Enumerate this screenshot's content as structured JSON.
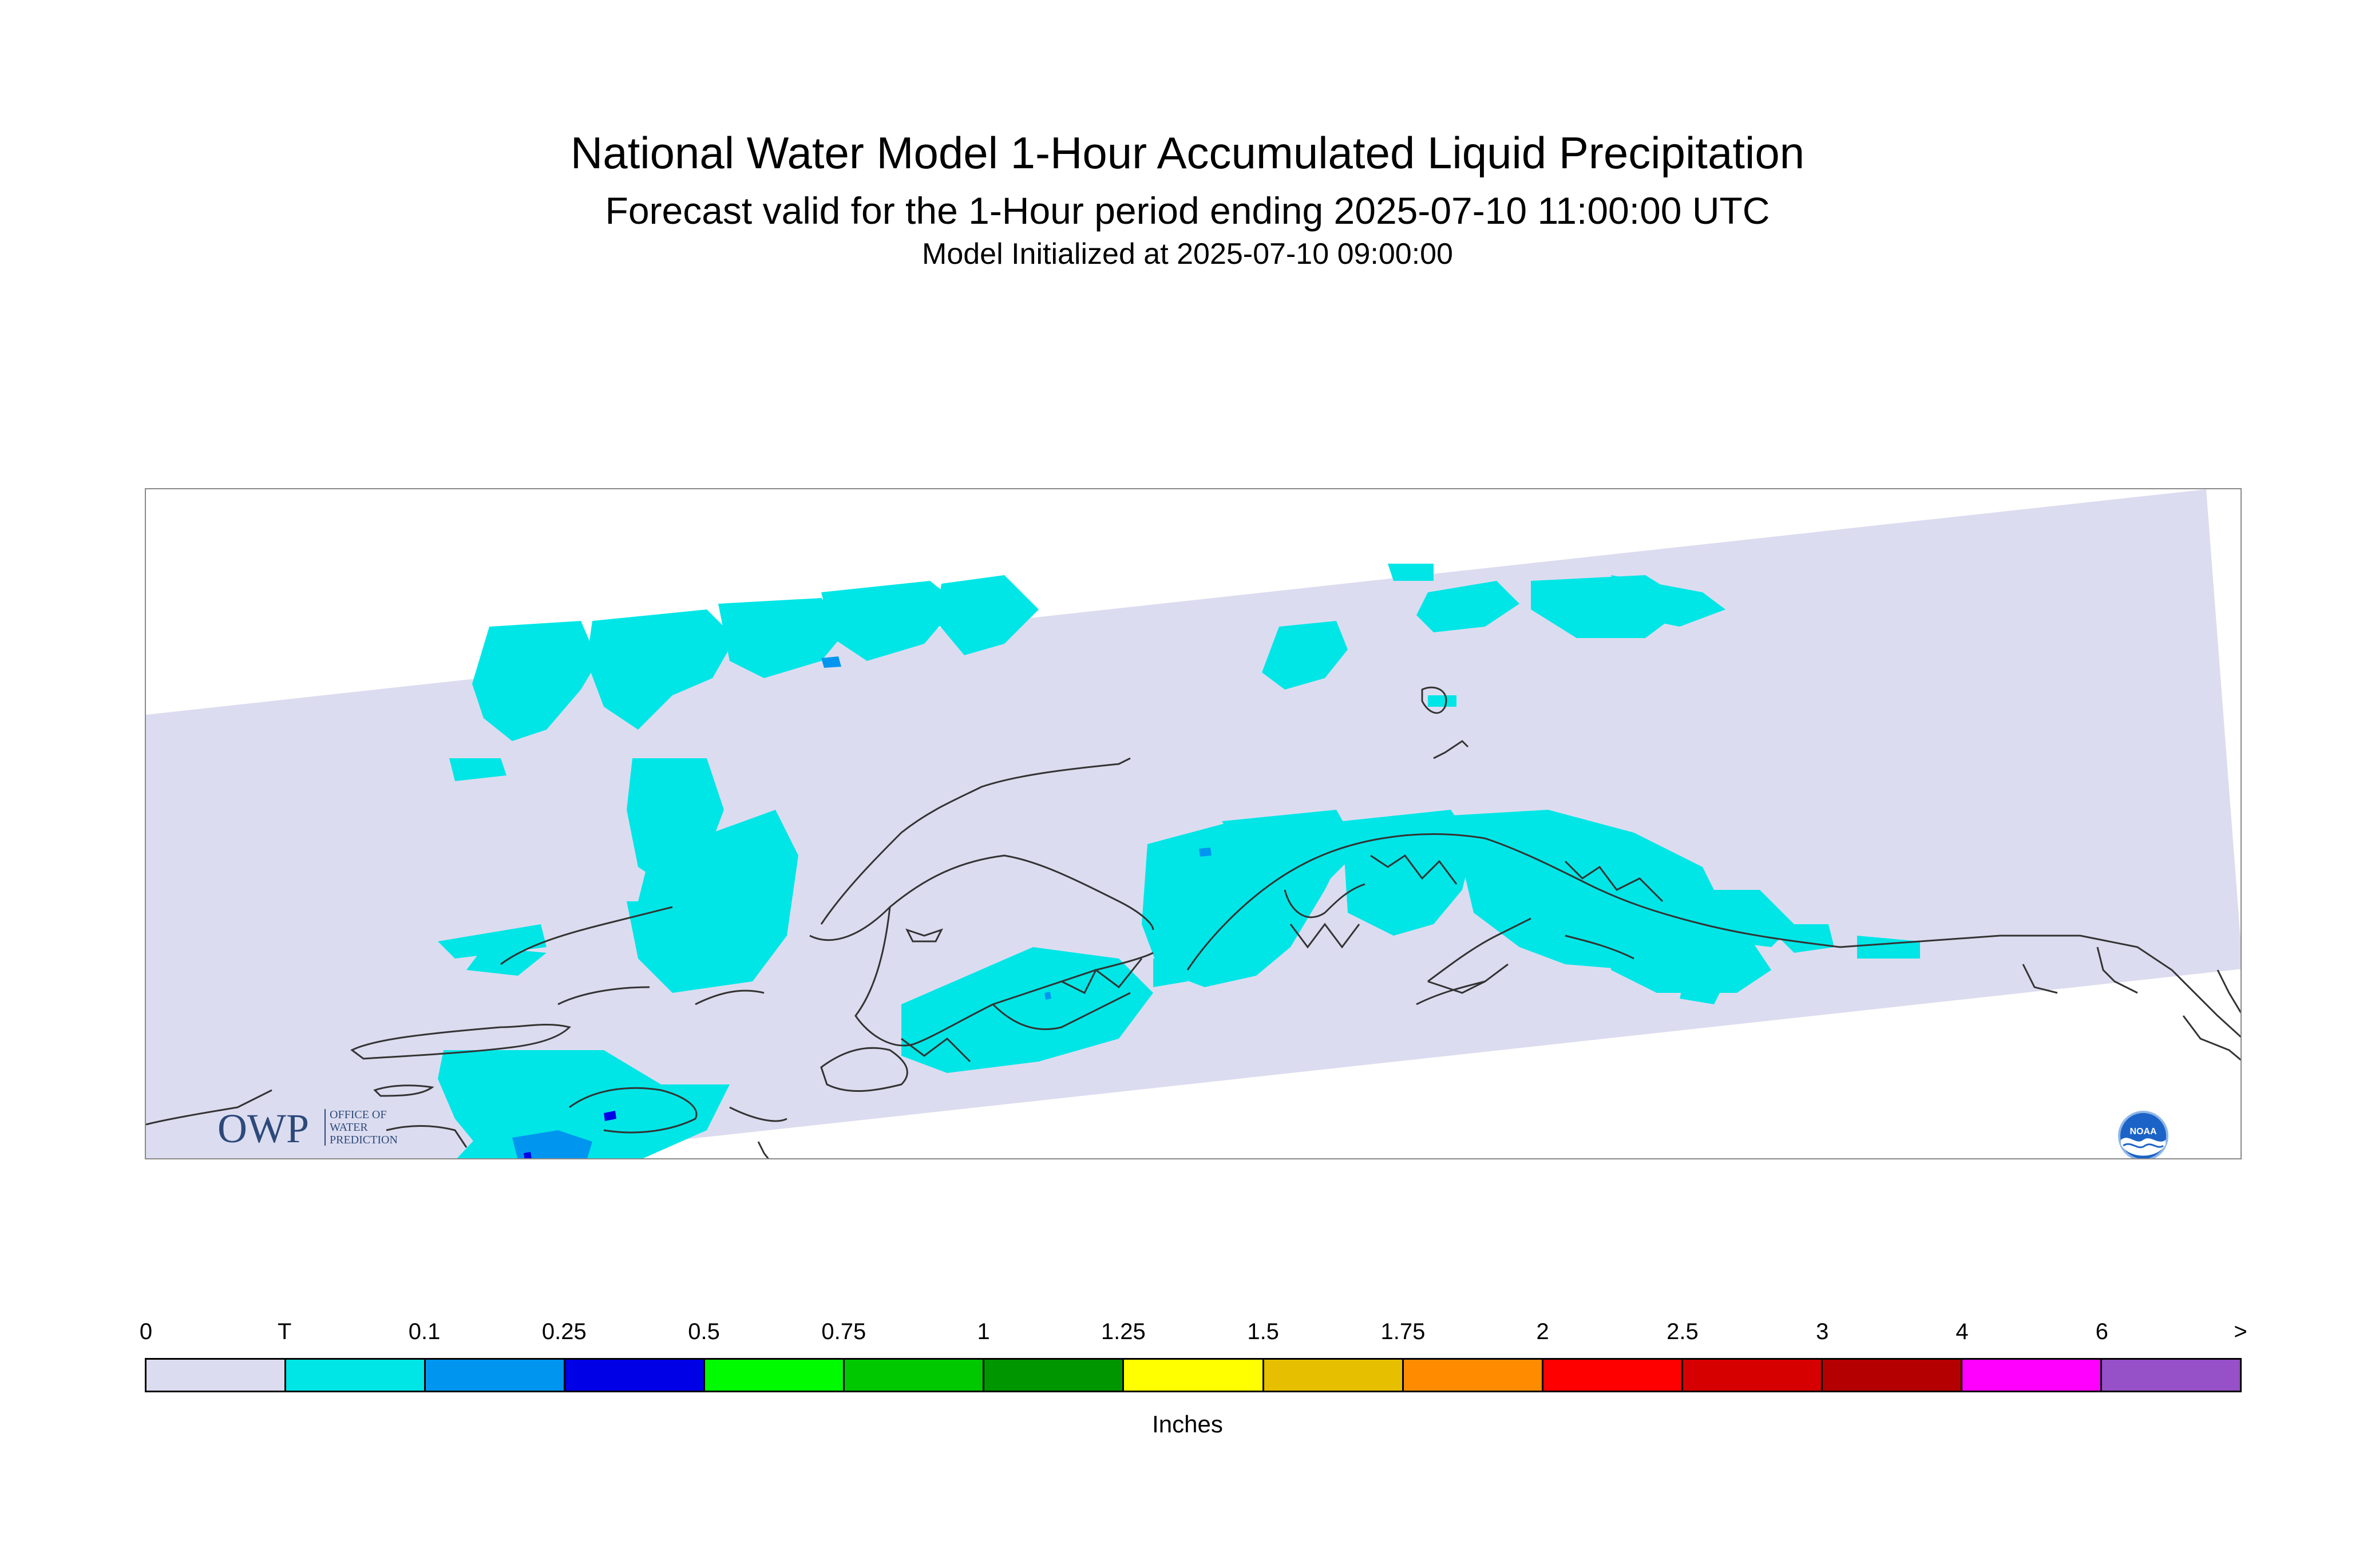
{
  "title": "National Water Model 1-Hour Accumulated Liquid Precipitation",
  "subtitle": "Forecast valid for the 1-Hour period ending 2025-07-10 11:00:00 UTC",
  "init_line": "Model Initialized at 2025-07-10 09:00:00",
  "logos": {
    "owp_letters": "OWP",
    "owp_text": [
      "OFFICE OF",
      "WATER",
      "PREDICTION"
    ],
    "noaa_text": "NOAA"
  },
  "legend": {
    "units": "Inches",
    "tick_labels": [
      "0",
      "T",
      "0.1",
      "0.25",
      "0.5",
      "0.75",
      "1",
      "1.25",
      "1.5",
      "1.75",
      "2",
      "2.5",
      "3",
      "4",
      "6",
      ">"
    ],
    "bins": [
      {
        "from": "0",
        "to": "T",
        "color": "#dcdcf0"
      },
      {
        "from": "T",
        "to": "0.1",
        "color": "#00e6e6"
      },
      {
        "from": "0.1",
        "to": "0.25",
        "color": "#0096f0"
      },
      {
        "from": "0.25",
        "to": "0.5",
        "color": "#0000e6"
      },
      {
        "from": "0.5",
        "to": "0.75",
        "color": "#00fa00"
      },
      {
        "from": "0.75",
        "to": "1",
        "color": "#00c800"
      },
      {
        "from": "1",
        "to": "1.25",
        "color": "#009600"
      },
      {
        "from": "1.25",
        "to": "1.5",
        "color": "#ffff00"
      },
      {
        "from": "1.5",
        "to": "1.75",
        "color": "#e6c000"
      },
      {
        "from": "1.75",
        "to": "2",
        "color": "#ff8c00"
      },
      {
        "from": "2",
        "to": "2.5",
        "color": "#ff0000"
      },
      {
        "from": "2.5",
        "to": "3",
        "color": "#d70000"
      },
      {
        "from": "3",
        "to": "4",
        "color": "#b40000"
      },
      {
        "from": "4",
        "to": "6",
        "color": "#ff00ff"
      },
      {
        "from": "6",
        "to": ">",
        "color": "#9650c8"
      }
    ]
  },
  "map": {
    "domain_fill": "#dcdcf0",
    "coastline_color": "#333333",
    "precip_colors": {
      "trace": "#00e6e6",
      "light": "#0096f0",
      "moderate": "#0000e6"
    }
  }
}
